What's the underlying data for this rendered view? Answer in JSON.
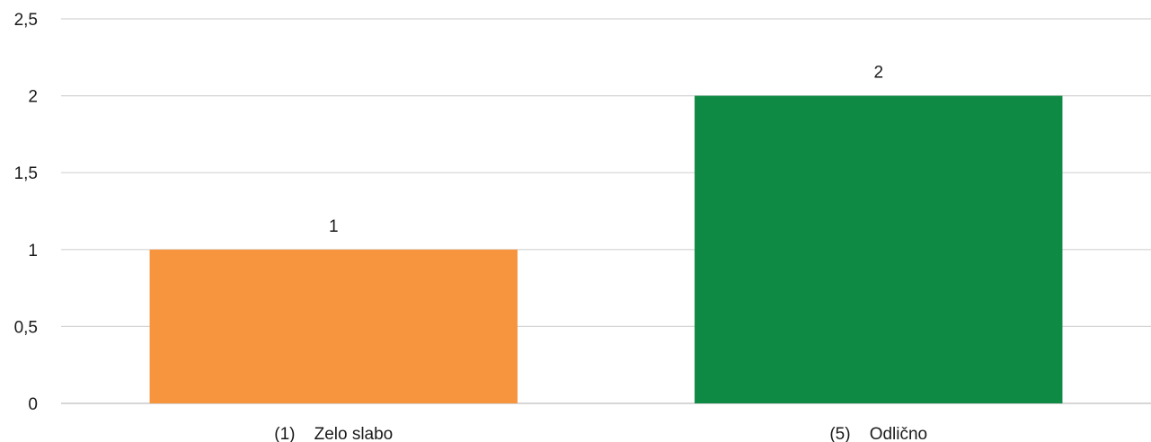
{
  "chart_data": {
    "type": "bar",
    "categories": [
      "(1)    Zelo slabo",
      "(5)    Odlično"
    ],
    "values": [
      1,
      2
    ],
    "data_labels": [
      "1",
      "2"
    ],
    "colors": [
      "#F7943E",
      "#0F8A45"
    ],
    "ylim": [
      0,
      2.5
    ],
    "yticks": [
      0,
      0.5,
      1,
      1.5,
      2,
      2.5
    ],
    "ytick_labels": [
      "0",
      "0,5",
      "1",
      "1,5",
      "2",
      "2,5"
    ],
    "title": "",
    "xlabel": "",
    "ylabel": "",
    "grid": true,
    "legend": "none"
  }
}
